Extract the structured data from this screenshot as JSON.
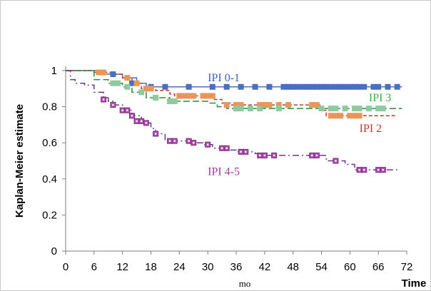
{
  "chart_data": {
    "type": "line",
    "title": "",
    "xlabel": "mo",
    "ylabel": "Kaplan-Meier estimate",
    "corner_label": "Time",
    "xlim": [
      0,
      72
    ],
    "ylim": [
      0,
      1
    ],
    "x_ticks": [
      "0",
      "6",
      "12",
      "18",
      "24",
      "30",
      "36",
      "42",
      "48",
      "54",
      "60",
      "66",
      "72"
    ],
    "y_ticks": [
      "0",
      "0.2",
      "0.4",
      "0.6",
      "0.8",
      "1"
    ],
    "grid": false,
    "series": [
      {
        "name": "IPI 0-1",
        "color": "#4a6fbf",
        "line_style": "solid",
        "marker": "square",
        "label_position": [
          30,
          0.94
        ],
        "steps": [
          [
            0,
            1
          ],
          [
            7,
            0.98
          ],
          [
            12,
            0.96
          ],
          [
            15,
            0.93
          ],
          [
            17,
            0.91
          ],
          [
            71,
            0.91
          ]
        ],
        "censored": [
          [
            10,
            0.98
          ],
          [
            14,
            0.93
          ],
          [
            18,
            0.91
          ],
          [
            21,
            0.91
          ],
          [
            26,
            0.91
          ],
          [
            31,
            0.91
          ],
          [
            34,
            0.91
          ],
          [
            37,
            0.91
          ],
          [
            40,
            0.91
          ],
          [
            43,
            0.91
          ],
          [
            46,
            0.91
          ],
          [
            47,
            0.91
          ],
          [
            48,
            0.91
          ],
          [
            49,
            0.91
          ],
          [
            50,
            0.91
          ],
          [
            51,
            0.91
          ],
          [
            52,
            0.91
          ],
          [
            53,
            0.91
          ],
          [
            54,
            0.91
          ],
          [
            55,
            0.91
          ],
          [
            56,
            0.91
          ],
          [
            57,
            0.91
          ],
          [
            58,
            0.91
          ],
          [
            59,
            0.91
          ],
          [
            60,
            0.91
          ],
          [
            61,
            0.91
          ],
          [
            62,
            0.91
          ],
          [
            63,
            0.91
          ],
          [
            65,
            0.91
          ],
          [
            66,
            0.91
          ],
          [
            68,
            0.91
          ],
          [
            70,
            0.91
          ]
        ]
      },
      {
        "name": "IPI 2",
        "color": "#c0392b",
        "marker_color": "#e8965a",
        "line_style": "dashed",
        "marker": "square",
        "label_position": [
          62,
          0.66
        ],
        "steps": [
          [
            0,
            1
          ],
          [
            6,
            0.99
          ],
          [
            10,
            0.98
          ],
          [
            12,
            0.96
          ],
          [
            14,
            0.93
          ],
          [
            16,
            0.9
          ],
          [
            19,
            0.89
          ],
          [
            22,
            0.87
          ],
          [
            23,
            0.86
          ],
          [
            31,
            0.84
          ],
          [
            33,
            0.82
          ],
          [
            35,
            0.81
          ],
          [
            54,
            0.78
          ],
          [
            55,
            0.75
          ],
          [
            70,
            0.75
          ]
        ],
        "censored": [
          [
            7,
            0.99
          ],
          [
            8,
            0.99
          ],
          [
            13,
            0.96
          ],
          [
            15,
            0.93
          ],
          [
            17,
            0.9
          ],
          [
            18,
            0.9
          ],
          [
            24,
            0.86
          ],
          [
            25,
            0.86
          ],
          [
            26,
            0.86
          ],
          [
            27,
            0.86
          ],
          [
            29,
            0.86
          ],
          [
            30,
            0.86
          ],
          [
            31,
            0.86
          ],
          [
            34,
            0.81
          ],
          [
            36,
            0.81
          ],
          [
            37,
            0.81
          ],
          [
            41,
            0.81
          ],
          [
            42,
            0.81
          ],
          [
            43,
            0.81
          ],
          [
            45,
            0.81
          ],
          [
            47,
            0.81
          ],
          [
            52,
            0.81
          ],
          [
            53,
            0.81
          ],
          [
            56,
            0.75
          ],
          [
            57,
            0.75
          ],
          [
            58,
            0.75
          ],
          [
            60,
            0.75
          ],
          [
            61,
            0.75
          ],
          [
            62,
            0.75
          ]
        ]
      },
      {
        "name": "IPI 3",
        "color": "#2e8b3a",
        "marker_color": "#90c8a0",
        "line_style": "long-dash",
        "marker": "square",
        "label_position": [
          64,
          0.83
        ],
        "steps": [
          [
            0,
            1
          ],
          [
            6,
            0.95
          ],
          [
            9,
            0.93
          ],
          [
            12,
            0.91
          ],
          [
            14,
            0.88
          ],
          [
            17,
            0.85
          ],
          [
            22,
            0.83
          ],
          [
            30,
            0.82
          ],
          [
            32,
            0.8
          ],
          [
            34,
            0.79
          ],
          [
            71,
            0.79
          ]
        ],
        "censored": [
          [
            10,
            0.93
          ],
          [
            11,
            0.93
          ],
          [
            13,
            0.91
          ],
          [
            16,
            0.88
          ],
          [
            19,
            0.85
          ],
          [
            22,
            0.83
          ],
          [
            23,
            0.83
          ],
          [
            36,
            0.79
          ],
          [
            37,
            0.79
          ],
          [
            39,
            0.79
          ],
          [
            41,
            0.79
          ],
          [
            45,
            0.79
          ],
          [
            54,
            0.79
          ],
          [
            56,
            0.79
          ],
          [
            57,
            0.79
          ],
          [
            59,
            0.79
          ],
          [
            61,
            0.79
          ],
          [
            62,
            0.79
          ],
          [
            64,
            0.79
          ],
          [
            66,
            0.79
          ],
          [
            67,
            0.79
          ]
        ]
      },
      {
        "name": "IPI 4-5",
        "color": "#6a3a8a",
        "marker_color": "#b050b0",
        "line_style": "dash-dot",
        "marker": "square",
        "label_position": [
          30,
          0.42
        ],
        "steps": [
          [
            0,
            1
          ],
          [
            1,
            0.95
          ],
          [
            2,
            0.93
          ],
          [
            4,
            0.92
          ],
          [
            6,
            0.88
          ],
          [
            8,
            0.85
          ],
          [
            9,
            0.83
          ],
          [
            10,
            0.81
          ],
          [
            12,
            0.78
          ],
          [
            14,
            0.75
          ],
          [
            16,
            0.71
          ],
          [
            18,
            0.68
          ],
          [
            19,
            0.65
          ],
          [
            21,
            0.61
          ],
          [
            27,
            0.6
          ],
          [
            29,
            0.59
          ],
          [
            31,
            0.57
          ],
          [
            34,
            0.56
          ],
          [
            36,
            0.55
          ],
          [
            40,
            0.54
          ],
          [
            42,
            0.53
          ],
          [
            52,
            0.53
          ],
          [
            55,
            0.5
          ],
          [
            59,
            0.48
          ],
          [
            61,
            0.45
          ],
          [
            70,
            0.45
          ]
        ],
        "censored": [
          [
            8,
            0.84
          ],
          [
            10,
            0.81
          ],
          [
            12,
            0.78
          ],
          [
            13,
            0.78
          ],
          [
            14,
            0.75
          ],
          [
            15,
            0.72
          ],
          [
            16,
            0.72
          ],
          [
            17,
            0.71
          ],
          [
            19,
            0.65
          ],
          [
            22,
            0.61
          ],
          [
            23,
            0.61
          ],
          [
            26,
            0.61
          ],
          [
            27,
            0.6
          ],
          [
            30,
            0.59
          ],
          [
            33,
            0.57
          ],
          [
            34,
            0.57
          ],
          [
            37,
            0.55
          ],
          [
            38,
            0.55
          ],
          [
            41,
            0.53
          ],
          [
            42,
            0.53
          ],
          [
            44,
            0.53
          ],
          [
            52,
            0.53
          ],
          [
            53,
            0.53
          ],
          [
            57,
            0.5
          ],
          [
            62,
            0.45
          ],
          [
            63,
            0.45
          ],
          [
            66,
            0.45
          ],
          [
            67,
            0.45
          ]
        ]
      }
    ]
  }
}
